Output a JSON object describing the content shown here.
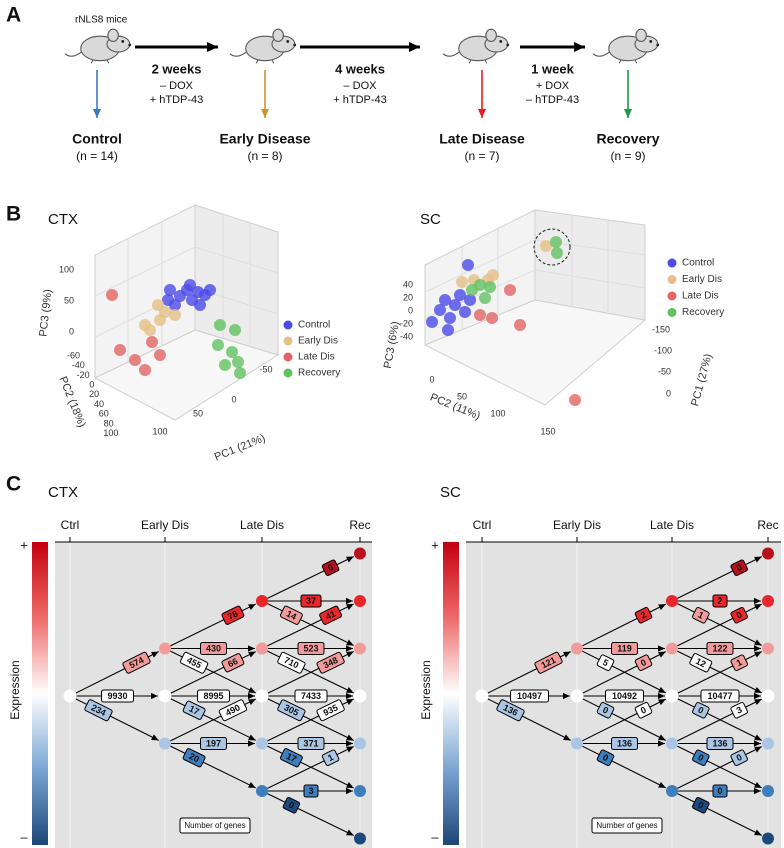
{
  "panel_a": {
    "label": "A",
    "strain": "rNLS8 mice",
    "treatments": [
      {
        "duration": "2 weeks",
        "lines": [
          "– DOX",
          "+ hTDP-43"
        ]
      },
      {
        "duration": "4 weeks",
        "lines": [
          "– DOX",
          "+ hTDP-43"
        ]
      },
      {
        "duration": "1 week",
        "lines": [
          "+ DOX",
          "– hTDP-43"
        ]
      }
    ],
    "groups": [
      {
        "name": "Control",
        "n": "(n = 14)",
        "color": "#3a7bbf"
      },
      {
        "name": "Early Disease",
        "n": "(n = 8)",
        "color": "#c8962a"
      },
      {
        "name": "Late Disease",
        "n": "(n = 7)",
        "color": "#e8201e"
      },
      {
        "name": "Recovery",
        "n": "(n = 9)",
        "color": "#1a9a48"
      }
    ]
  },
  "panel_b": {
    "label": "B",
    "plots": [
      {
        "title": "CTX",
        "axes": {
          "z": {
            "label": "PC3 (9%)",
            "ticks": [
              "100",
              "50",
              "0"
            ]
          },
          "y": {
            "label": "PC2 (18%)",
            "ticks": [
              "-60",
              "-40",
              "-20",
              "0",
              "20",
              "40",
              "60",
              "80",
              "100"
            ]
          },
          "x": {
            "label": "PC1 (21%)",
            "ticks": [
              "100",
              "50",
              "0",
              "-50"
            ]
          }
        },
        "legend": [
          {
            "name": "Control",
            "color": "#4b4bea"
          },
          {
            "name": "Early Dis",
            "color": "#e6bf86"
          },
          {
            "name": "Late Dis",
            "color": "#e26464"
          },
          {
            "name": "Recovery",
            "color": "#62c262"
          }
        ]
      },
      {
        "title": "SC",
        "axes": {
          "z": {
            "label": "PC3 (6%)",
            "ticks": [
              "40",
              "20",
              "0",
              "-20",
              "-40"
            ]
          },
          "y": {
            "label": "PC2 (11%)",
            "ticks": [
              "0",
              "50",
              "100",
              "150"
            ]
          },
          "x": {
            "label": "PC1 (27%)",
            "ticks": [
              "-150",
              "-100",
              "-50",
              "0"
            ]
          }
        },
        "legend": [
          {
            "name": "Control",
            "color": "#4b4bea"
          },
          {
            "name": "Early Dis",
            "color": "#e6bf86"
          },
          {
            "name": "Late Dis",
            "color": "#e26464"
          },
          {
            "name": "Recovery",
            "color": "#62c262"
          }
        ]
      }
    ]
  },
  "panel_c": {
    "label": "C",
    "diagrams": [
      {
        "title": "CTX",
        "stages": [
          "Ctrl",
          "Early Dis",
          "Late Dis",
          "Rec"
        ],
        "scale": {
          "label": "Expression",
          "high": "+",
          "low": "–"
        },
        "note": "Number of genes",
        "transitions": [
          [
            [
              574,
              9930,
              234
            ]
          ],
          [
            [
              78,
              430,
              455
            ],
            [
              66,
              8995,
              17
            ],
            [
              490,
              197,
              20
            ]
          ],
          [
            [
              0,
              37,
              14
            ],
            [
              41,
              523,
              710
            ],
            [
              348,
              7433,
              305
            ],
            [
              935,
              371,
              17
            ],
            [
              1,
              3,
              0
            ]
          ]
        ]
      },
      {
        "title": "SC",
        "stages": [
          "Ctrl",
          "Early Dis",
          "Late Dis",
          "Rec"
        ],
        "scale": {
          "label": "Expression",
          "high": "+",
          "low": "–"
        },
        "note": "Number of genes",
        "transitions": [
          [
            [
              121,
              10497,
              136
            ]
          ],
          [
            [
              2,
              119,
              5
            ],
            [
              0,
              10492,
              0
            ],
            [
              0,
              136,
              0
            ]
          ],
          [
            [
              0,
              2,
              1
            ],
            [
              0,
              122,
              12
            ],
            [
              1,
              10477,
              0
            ],
            [
              3,
              136,
              0
            ],
            [
              0,
              0,
              0
            ]
          ]
        ]
      }
    ]
  }
}
